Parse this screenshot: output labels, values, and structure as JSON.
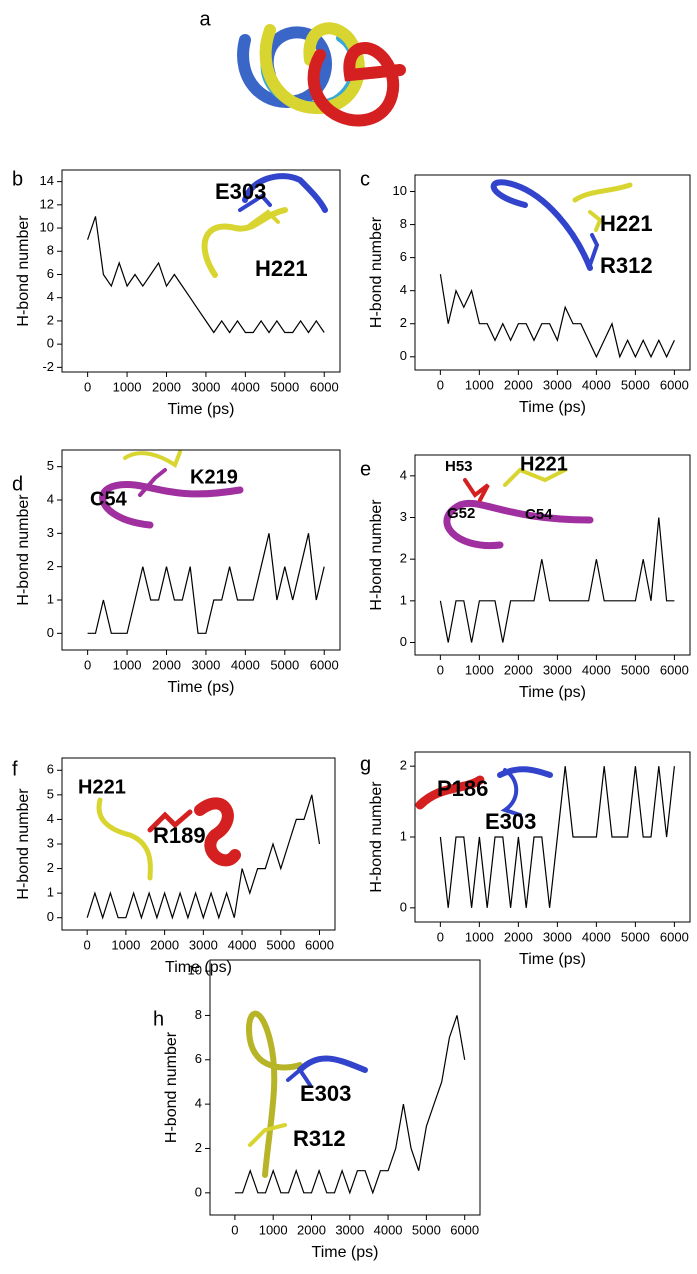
{
  "panel_a": {
    "label": "a"
  },
  "chart_data": [
    {
      "type": "line",
      "label": "b",
      "x_label": "Time (ps)",
      "y_label": "H-bond number",
      "annotations": [
        "E303",
        "H221"
      ],
      "x": [
        0,
        200,
        400,
        600,
        800,
        1000,
        1200,
        1400,
        1600,
        1800,
        2000,
        2200,
        2400,
        2600,
        2800,
        3000,
        3200,
        3400,
        3600,
        3800,
        4000,
        4200,
        4400,
        4600,
        4800,
        5000,
        5200,
        5400,
        5600,
        5800,
        6000
      ],
      "series": [
        {
          "color": "#000000",
          "values": [
            9,
            11,
            6,
            5,
            7,
            5,
            6,
            5,
            6,
            7,
            5,
            6,
            5,
            4,
            3,
            2,
            1,
            2,
            1,
            2,
            1,
            1,
            2,
            1,
            2,
            1,
            1,
            2,
            1,
            2,
            1
          ]
        }
      ],
      "xlim": [
        -650,
        6400
      ],
      "ylim": [
        -2.4,
        15
      ],
      "xticks": [
        0,
        1000,
        2000,
        3000,
        4000,
        5000,
        6000
      ],
      "yticks": [
        -2,
        0,
        2,
        4,
        6,
        8,
        10,
        12,
        14
      ]
    },
    {
      "type": "line",
      "label": "c",
      "x_label": "Time (ps)",
      "y_label": "H-bond number",
      "annotations": [
        "H221",
        "R312"
      ],
      "x": [
        0,
        200,
        400,
        600,
        800,
        1000,
        1200,
        1400,
        1600,
        1800,
        2000,
        2200,
        2400,
        2600,
        2800,
        3000,
        3200,
        3400,
        3600,
        3800,
        4000,
        4200,
        4400,
        4600,
        4800,
        5000,
        5200,
        5400,
        5600,
        5800,
        6000
      ],
      "series": [
        {
          "color": "#000000",
          "values": [
            5,
            2,
            4,
            3,
            4,
            2,
            2,
            1,
            2,
            1,
            2,
            2,
            1,
            2,
            2,
            1,
            3,
            2,
            2,
            1,
            0,
            1,
            2,
            0,
            1,
            0,
            1,
            0,
            1,
            0,
            1
          ]
        }
      ],
      "xlim": [
        -650,
        6400
      ],
      "ylim": [
        -0.8,
        11
      ],
      "xticks": [
        0,
        1000,
        2000,
        3000,
        4000,
        5000,
        6000
      ],
      "yticks": [
        0,
        2,
        4,
        6,
        8,
        10
      ]
    },
    {
      "type": "line",
      "label": "d",
      "x_label": "Time (ps)",
      "y_label": "H-bond number",
      "annotations": [
        "C54",
        "K219"
      ],
      "x": [
        0,
        200,
        400,
        600,
        800,
        1000,
        1200,
        1400,
        1600,
        1800,
        2000,
        2200,
        2400,
        2600,
        2800,
        3000,
        3200,
        3400,
        3600,
        3800,
        4000,
        4200,
        4400,
        4600,
        4800,
        5000,
        5200,
        5400,
        5600,
        5800,
        6000
      ],
      "series": [
        {
          "color": "#000000",
          "values": [
            0,
            0,
            1,
            0,
            0,
            0,
            1,
            2,
            1,
            1,
            2,
            1,
            1,
            2,
            0,
            0,
            1,
            1,
            2,
            1,
            1,
            1,
            2,
            3,
            1,
            2,
            1,
            2,
            3,
            1,
            2
          ]
        }
      ],
      "xlim": [
        -650,
        6400
      ],
      "ylim": [
        -0.5,
        5.5
      ],
      "xticks": [
        0,
        1000,
        2000,
        3000,
        4000,
        5000,
        6000
      ],
      "yticks": [
        0,
        1,
        2,
        3,
        4,
        5
      ]
    },
    {
      "type": "line",
      "label": "e",
      "x_label": "Time (ps)",
      "y_label": "H-bond number",
      "annotations": [
        "H53",
        "H221",
        "G52",
        "C54"
      ],
      "x": [
        0,
        200,
        400,
        600,
        800,
        1000,
        1200,
        1400,
        1600,
        1800,
        2000,
        2200,
        2400,
        2600,
        2800,
        3000,
        3200,
        3400,
        3600,
        3800,
        4000,
        4200,
        4400,
        4600,
        4800,
        5000,
        5200,
        5400,
        5600,
        5800,
        6000
      ],
      "series": [
        {
          "color": "#000000",
          "values": [
            1,
            0,
            1,
            1,
            0,
            1,
            1,
            1,
            0,
            1,
            1,
            1,
            1,
            2,
            1,
            1,
            1,
            1,
            1,
            1,
            2,
            1,
            1,
            1,
            1,
            1,
            2,
            1,
            3,
            1,
            1
          ]
        }
      ],
      "xlim": [
        -650,
        6400
      ],
      "ylim": [
        -0.3,
        4.5
      ],
      "xticks": [
        0,
        1000,
        2000,
        3000,
        4000,
        5000,
        6000
      ],
      "yticks": [
        0,
        1,
        2,
        3,
        4
      ]
    },
    {
      "type": "line",
      "label": "f",
      "x_label": "Time (ps)",
      "y_label": "H-bond number",
      "annotations": [
        "H221",
        "R189"
      ],
      "x": [
        0,
        200,
        400,
        600,
        800,
        1000,
        1200,
        1400,
        1600,
        1800,
        2000,
        2200,
        2400,
        2600,
        2800,
        3000,
        3200,
        3400,
        3600,
        3800,
        4000,
        4200,
        4400,
        4600,
        4800,
        5000,
        5200,
        5400,
        5600,
        5800,
        6000
      ],
      "series": [
        {
          "color": "#000000",
          "values": [
            0,
            1,
            0,
            1,
            0,
            0,
            1,
            0,
            1,
            0,
            1,
            0,
            1,
            0,
            1,
            0,
            1,
            0,
            1,
            0,
            2,
            1,
            2,
            2,
            3,
            2,
            3,
            4,
            4,
            5,
            3
          ]
        }
      ],
      "xlim": [
        -650,
        6400
      ],
      "ylim": [
        -0.5,
        6.5
      ],
      "xticks": [
        0,
        1000,
        2000,
        3000,
        4000,
        5000,
        6000
      ],
      "yticks": [
        0,
        1,
        2,
        3,
        4,
        5,
        6
      ]
    },
    {
      "type": "line",
      "label": "g",
      "x_label": "Time (ps)",
      "y_label": "H-bond number",
      "annotations": [
        "P186",
        "E303"
      ],
      "x": [
        0,
        200,
        400,
        600,
        800,
        1000,
        1200,
        1400,
        1600,
        1800,
        2000,
        2200,
        2400,
        2600,
        2800,
        3000,
        3200,
        3400,
        3600,
        3800,
        4000,
        4200,
        4400,
        4600,
        4800,
        5000,
        5200,
        5400,
        5600,
        5800,
        6000
      ],
      "series": [
        {
          "color": "#000000",
          "values": [
            1,
            0,
            1,
            1,
            0,
            1,
            0,
            1,
            1,
            0,
            1,
            0,
            1,
            1,
            0,
            1,
            2,
            1,
            1,
            1,
            1,
            2,
            1,
            1,
            1,
            2,
            1,
            1,
            2,
            1,
            2
          ]
        }
      ],
      "xlim": [
        -650,
        6400
      ],
      "ylim": [
        -0.2,
        2.2
      ],
      "xticks": [
        0,
        1000,
        2000,
        3000,
        4000,
        5000,
        6000
      ],
      "yticks": [
        0,
        1,
        2
      ]
    },
    {
      "type": "line",
      "label": "h",
      "x_label": "Time (ps)",
      "y_label": "H-bond number",
      "annotations": [
        "E303",
        "R312"
      ],
      "x": [
        0,
        200,
        400,
        600,
        800,
        1000,
        1200,
        1400,
        1600,
        1800,
        2000,
        2200,
        2400,
        2600,
        2800,
        3000,
        3200,
        3400,
        3600,
        3800,
        4000,
        4200,
        4400,
        4600,
        4800,
        5000,
        5200,
        5400,
        5600,
        5800,
        6000
      ],
      "series": [
        {
          "color": "#000000",
          "values": [
            0,
            0,
            1,
            0,
            0,
            1,
            0,
            0,
            1,
            0,
            0,
            1,
            0,
            0,
            1,
            0,
            1,
            1,
            0,
            1,
            1,
            2,
            4,
            2,
            1,
            3,
            4,
            5,
            7,
            8,
            6
          ]
        }
      ],
      "xlim": [
        -650,
        6400
      ],
      "ylim": [
        -1,
        10.5
      ],
      "xticks": [
        0,
        1000,
        2000,
        3000,
        4000,
        5000,
        6000
      ],
      "yticks": [
        0,
        2,
        4,
        6,
        8,
        10
      ]
    }
  ]
}
